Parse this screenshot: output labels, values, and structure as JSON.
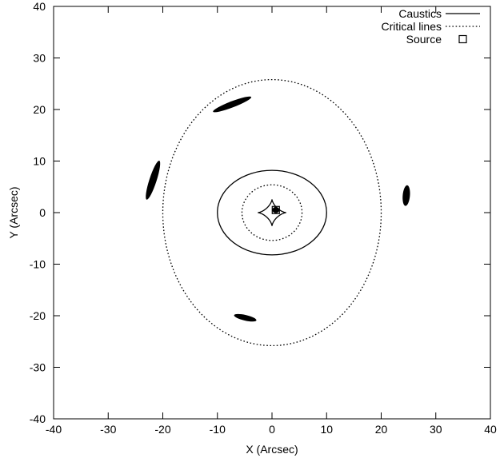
{
  "chart_data": {
    "type": "scatter",
    "title": "",
    "xlabel": "X (Arcsec)",
    "ylabel": "Y (Arcsec)",
    "xlim": [
      -40,
      40
    ],
    "ylim": [
      -40,
      40
    ],
    "xticks": [
      -40,
      -30,
      -20,
      -10,
      0,
      10,
      20,
      30,
      40
    ],
    "yticks": [
      -40,
      -30,
      -20,
      -10,
      0,
      10,
      20,
      30,
      40
    ],
    "grid": false,
    "legend_position": "top-right",
    "legend": [
      {
        "label": "Caustics",
        "style": "solid line"
      },
      {
        "label": "Critical lines",
        "style": "dotted line"
      },
      {
        "label": "Source",
        "style": "open square"
      }
    ],
    "series": [
      {
        "name": "Caustics",
        "line_style": "solid",
        "curves": [
          {
            "shape": "ellipse",
            "cx": 0,
            "cy": 0,
            "rx": 10,
            "ry": 8.2
          },
          {
            "shape": "astroid",
            "cx": 0,
            "cy": 0,
            "rx": 2.6,
            "ry": 2.6
          }
        ]
      },
      {
        "name": "Critical lines",
        "line_style": "dotted",
        "curves": [
          {
            "shape": "ellipse",
            "cx": 0,
            "cy": 0,
            "rx": 20,
            "ry": 25.8
          },
          {
            "shape": "ellipse",
            "cx": 0,
            "cy": 0,
            "rx": 5.5,
            "ry": 5.4
          }
        ]
      },
      {
        "name": "Source",
        "marker": "open square",
        "x": [
          0.7
        ],
        "y": [
          0.5
        ]
      }
    ],
    "images": [
      {
        "x": -7.3,
        "y": 21.0,
        "length": 7.5,
        "width": 1.2,
        "angle_deg": 21
      },
      {
        "x": -21.8,
        "y": 6.3,
        "length": 7.5,
        "width": 1.4,
        "angle_deg": 72
      },
      {
        "x": 24.6,
        "y": 3.3,
        "length": 3.8,
        "width": 1.4,
        "angle_deg": 85
      },
      {
        "x": -4.9,
        "y": -20.4,
        "length": 4.2,
        "width": 1.1,
        "angle_deg": -13
      },
      {
        "x": 0.7,
        "y": 0.5,
        "length": 1.3,
        "width": 1.2,
        "angle_deg": 0
      }
    ],
    "colors": {
      "ink": "#000000",
      "background": "#ffffff"
    }
  }
}
